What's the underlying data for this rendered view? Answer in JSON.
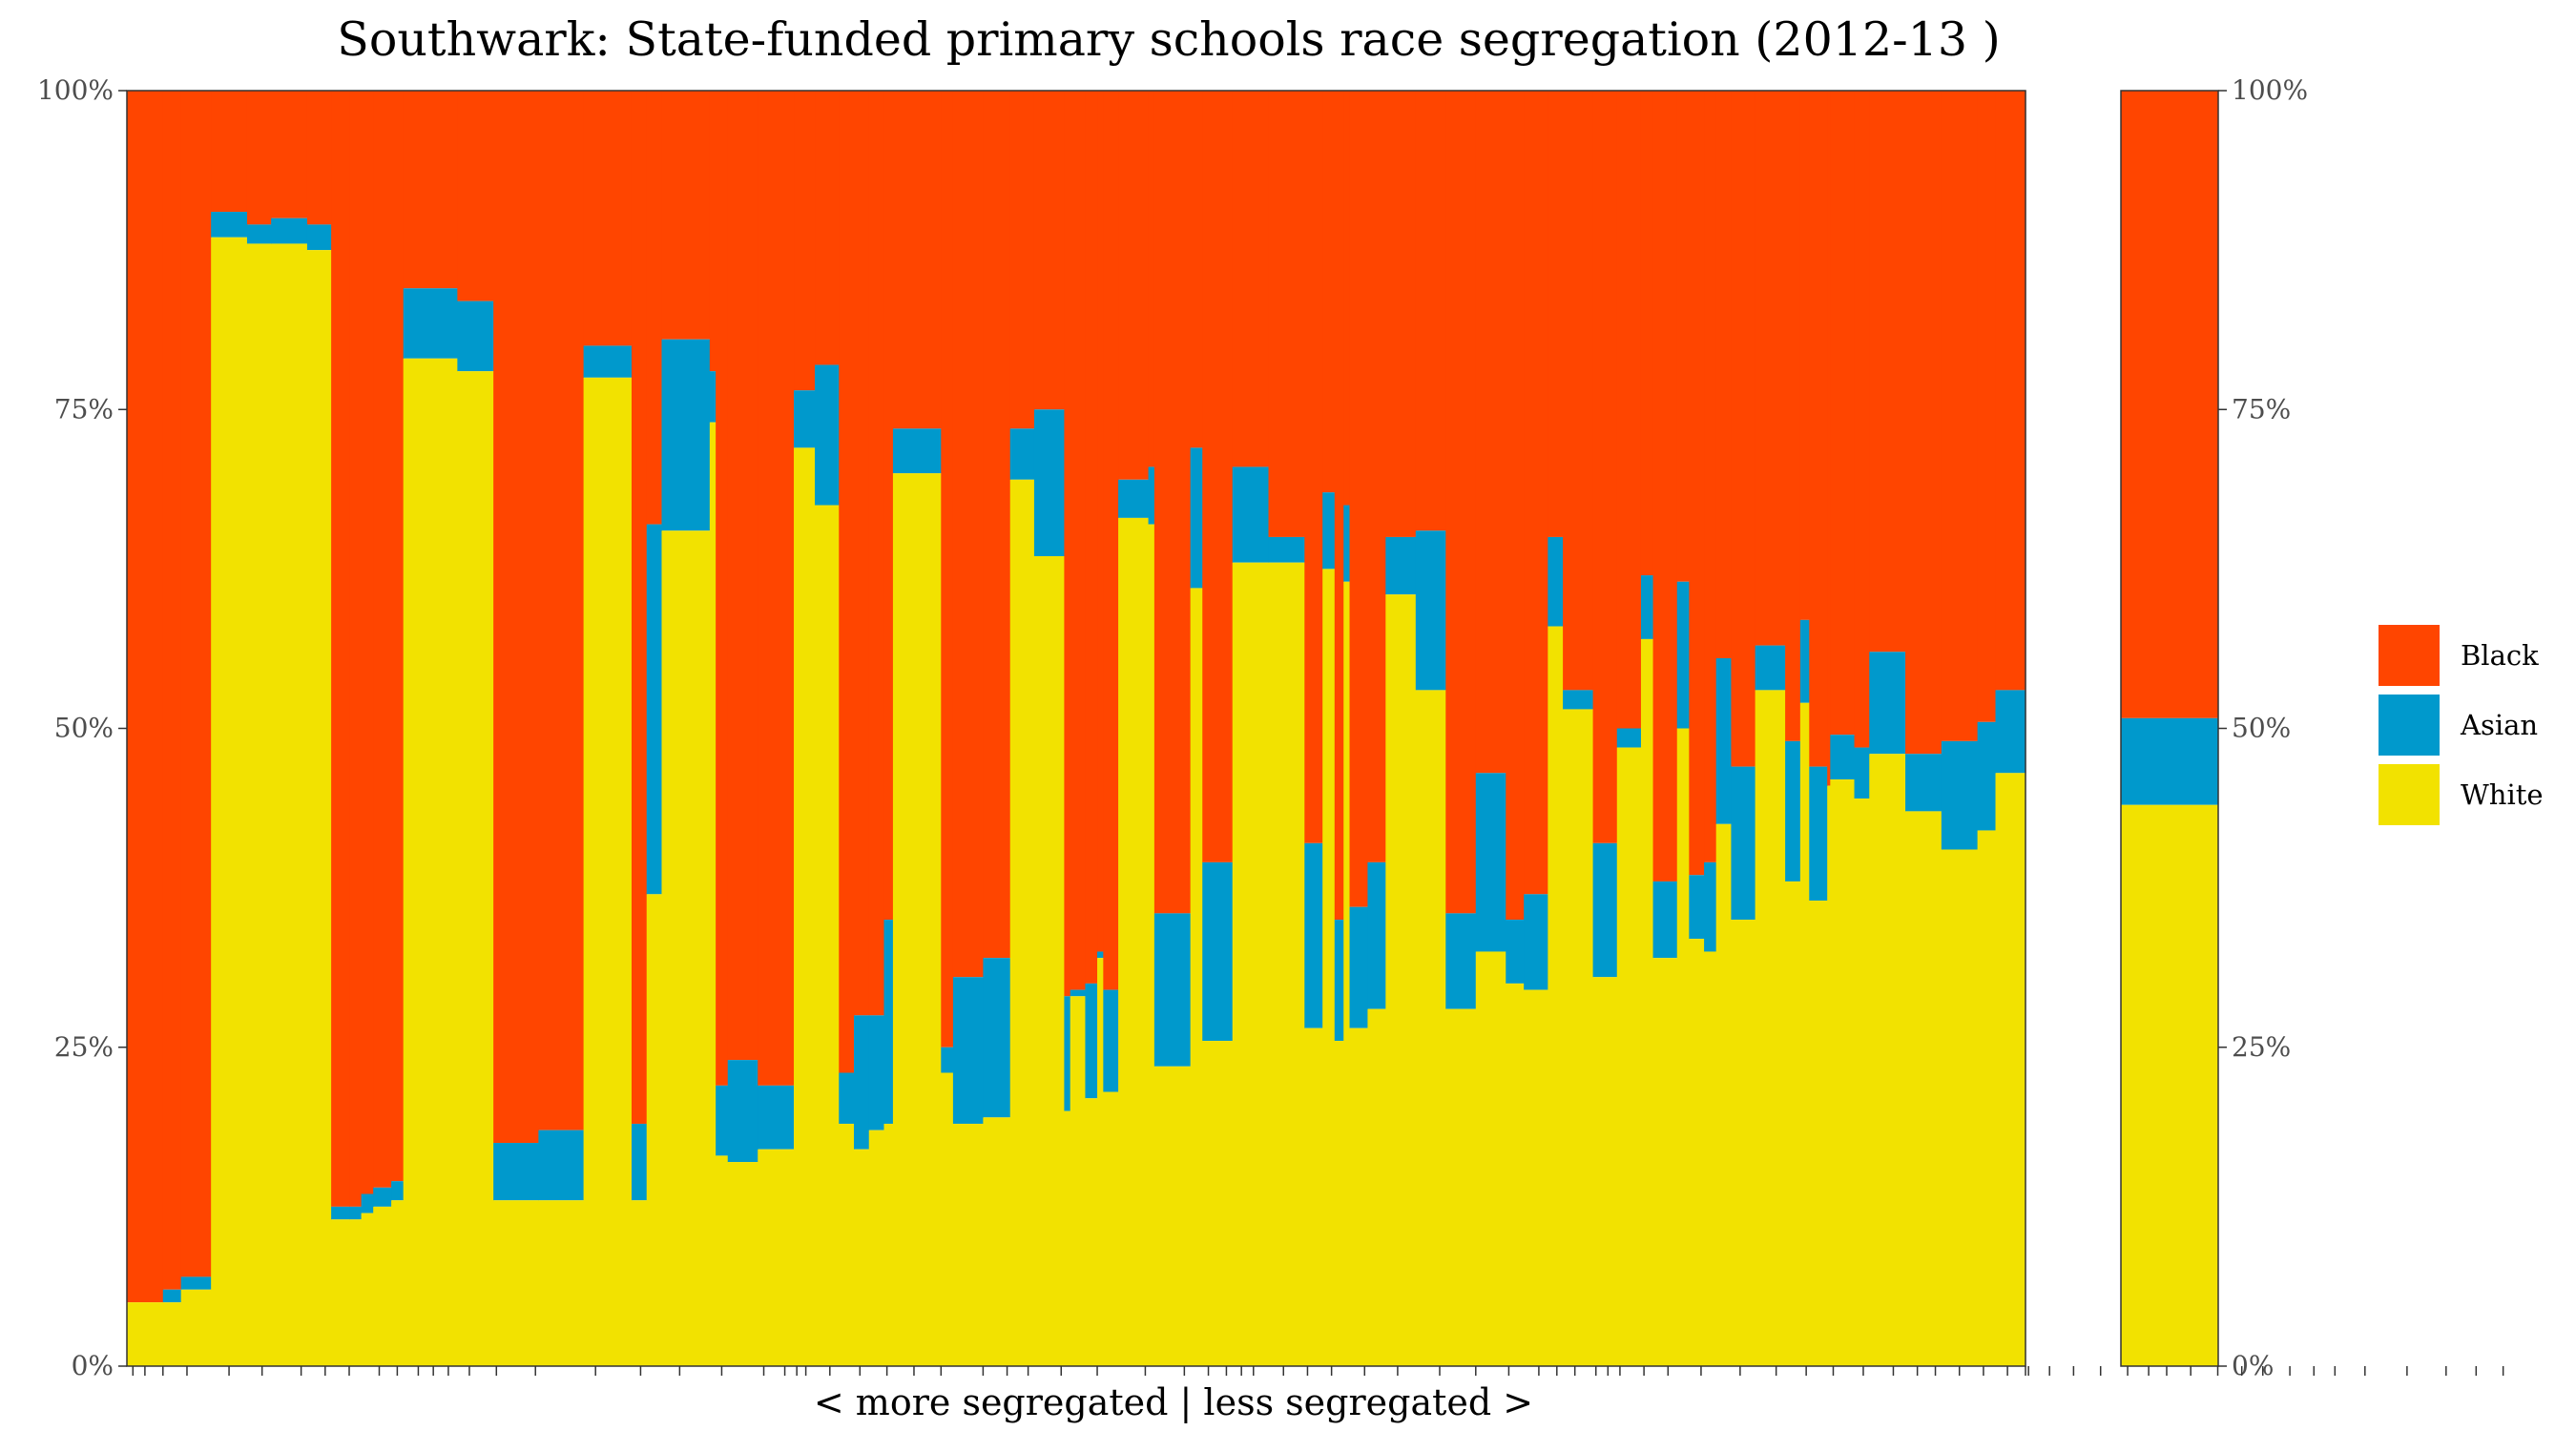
{
  "chart_data": {
    "type": "bar",
    "subtype": "stacked-100-percent-variable-width",
    "title": "Southwark: State-funded primary schools race segregation (2012-13 )",
    "xlabel": "< more segregated | less segregated >",
    "ylabel": "",
    "ylim": [
      0,
      100
    ],
    "y_ticks": [
      "0%",
      "25%",
      "50%",
      "75%",
      "100%"
    ],
    "y_tick_values": [
      0,
      25,
      50,
      75,
      100
    ],
    "secondary_y_axis": true,
    "stack_order_bottom_to_top": [
      "White",
      "Asian",
      "Black"
    ],
    "colors": {
      "White": "#f2e200",
      "Asian": "#0099cc",
      "Black": "#ff4500"
    },
    "legend": {
      "position": "right",
      "entries": [
        "Black",
        "Asian",
        "White"
      ]
    },
    "schools": [
      {
        "w": 1.2,
        "white": 5,
        "asian": 0
      },
      {
        "w": 0.6,
        "white": 5,
        "asian": 1
      },
      {
        "w": 1.0,
        "white": 6,
        "asian": 1
      },
      {
        "w": 1.2,
        "white": 88.5,
        "asian": 2
      },
      {
        "w": 0.8,
        "white": 88,
        "asian": 1.5
      },
      {
        "w": 1.2,
        "white": 88,
        "asian": 2
      },
      {
        "w": 0.8,
        "white": 87.5,
        "asian": 2
      },
      {
        "w": 0.6,
        "white": 11.5,
        "asian": 1
      },
      {
        "w": 0.4,
        "white": 11.5,
        "asian": 1
      },
      {
        "w": 0.4,
        "white": 12,
        "asian": 1.5
      },
      {
        "w": 0.6,
        "white": 12.5,
        "asian": 1.5
      },
      {
        "w": 0.4,
        "white": 13,
        "asian": 1.5
      },
      {
        "w": 1.8,
        "white": 79,
        "asian": 5.5
      },
      {
        "w": 1.2,
        "white": 78,
        "asian": 5.5
      },
      {
        "w": 1.5,
        "white": 13,
        "asian": 4.5
      },
      {
        "w": 1.5,
        "white": 13,
        "asian": 5.5
      },
      {
        "w": 1.6,
        "white": 77.5,
        "asian": 2.5
      },
      {
        "w": 0.5,
        "white": 13,
        "asian": 6
      },
      {
        "w": 0.5,
        "white": 37,
        "asian": 29
      },
      {
        "w": 1.6,
        "white": 65.5,
        "asian": 15
      },
      {
        "w": 0.2,
        "white": 74,
        "asian": 4
      },
      {
        "w": 0.4,
        "white": 16.5,
        "asian": 5.5
      },
      {
        "w": 1.0,
        "white": 16,
        "asian": 8
      },
      {
        "w": 1.2,
        "white": 17,
        "asian": 5
      },
      {
        "w": 0.7,
        "white": 72,
        "asian": 4.5
      },
      {
        "w": 0.8,
        "white": 67.5,
        "asian": 11
      },
      {
        "w": 0.5,
        "white": 19,
        "asian": 4
      },
      {
        "w": 0.5,
        "white": 17,
        "asian": 10.5
      },
      {
        "w": 0.5,
        "white": 18.5,
        "asian": 9
      },
      {
        "w": 0.3,
        "white": 19,
        "asian": 16
      },
      {
        "w": 1.6,
        "white": 70,
        "asian": 3.5
      },
      {
        "w": 0.4,
        "white": 23,
        "asian": 2
      },
      {
        "w": 1.0,
        "white": 19,
        "asian": 11.5
      },
      {
        "w": 0.9,
        "white": 19.5,
        "asian": 12.5
      },
      {
        "w": 0.8,
        "white": 69.5,
        "asian": 4
      },
      {
        "w": 1.0,
        "white": 63.5,
        "asian": 11.5
      },
      {
        "w": 0.2,
        "white": 20,
        "asian": 9
      },
      {
        "w": 0.5,
        "white": 29,
        "asian": 0.5
      },
      {
        "w": 0.4,
        "white": 21,
        "asian": 9
      },
      {
        "w": 0.2,
        "white": 32,
        "asian": 0.5
      },
      {
        "w": 0.5,
        "white": 21.5,
        "asian": 8
      },
      {
        "w": 1.0,
        "white": 66.5,
        "asian": 3
      },
      {
        "w": 0.2,
        "white": 66,
        "asian": 4.5
      },
      {
        "w": 1.2,
        "white": 23.5,
        "asian": 12
      },
      {
        "w": 0.4,
        "white": 61,
        "asian": 11
      },
      {
        "w": 1.0,
        "white": 25.5,
        "asian": 14
      },
      {
        "w": 1.2,
        "white": 63,
        "asian": 7.5
      },
      {
        "w": 1.2,
        "white": 63,
        "asian": 2
      },
      {
        "w": 0.6,
        "white": 26.5,
        "asian": 14.5
      },
      {
        "w": 0.4,
        "white": 62.5,
        "asian": 6
      },
      {
        "w": 0.3,
        "white": 25.5,
        "asian": 9.5
      },
      {
        "w": 0.2,
        "white": 61.5,
        "asian": 6
      },
      {
        "w": 0.6,
        "white": 26.5,
        "asian": 9.5
      },
      {
        "w": 0.6,
        "white": 28,
        "asian": 11.5
      },
      {
        "w": 1.0,
        "white": 60.5,
        "asian": 4.5
      },
      {
        "w": 1.0,
        "white": 53,
        "asian": 12.5
      },
      {
        "w": 1.0,
        "white": 28,
        "asian": 7.5
      },
      {
        "w": 1.0,
        "white": 32.5,
        "asian": 14
      },
      {
        "w": 0.6,
        "white": 30,
        "asian": 5
      },
      {
        "w": 0.8,
        "white": 29.5,
        "asian": 7.5
      },
      {
        "w": 0.5,
        "white": 58,
        "asian": 7
      },
      {
        "w": 1.0,
        "white": 51.5,
        "asian": 1.5
      },
      {
        "w": 0.8,
        "white": 30.5,
        "asian": 10.5
      },
      {
        "w": 0.8,
        "white": 48.5,
        "asian": 1.5
      },
      {
        "w": 0.4,
        "white": 57,
        "asian": 5
      },
      {
        "w": 0.8,
        "white": 32,
        "asian": 6
      },
      {
        "w": 0.4,
        "white": 50,
        "asian": 11.5
      },
      {
        "w": 0.5,
        "white": 33.5,
        "asian": 5
      },
      {
        "w": 0.4,
        "white": 32.5,
        "asian": 7
      },
      {
        "w": 0.5,
        "white": 42.5,
        "asian": 13
      },
      {
        "w": 0.8,
        "white": 35,
        "asian": 12
      },
      {
        "w": 1.0,
        "white": 53,
        "asian": 3.5
      },
      {
        "w": 0.5,
        "white": 38,
        "asian": 11
      },
      {
        "w": 0.3,
        "white": 52,
        "asian": 6.5
      },
      {
        "w": 0.6,
        "white": 36.5,
        "asian": 10.5
      },
      {
        "w": 0.1,
        "white": 45.5,
        "asian": 0
      },
      {
        "w": 0.8,
        "white": 46,
        "asian": 3.5
      },
      {
        "w": 0.5,
        "white": 44.5,
        "asian": 4
      },
      {
        "w": 1.2,
        "white": 48,
        "asian": 8
      },
      {
        "w": 1.2,
        "white": 43.5,
        "asian": 4.5
      },
      {
        "w": 1.2,
        "white": 40.5,
        "asian": 8.5
      },
      {
        "w": 0.6,
        "white": 42,
        "asian": 8.5
      },
      {
        "w": 1.0,
        "white": 46.5,
        "asian": 6.5
      }
    ],
    "x_ticks": [
      0.2,
      0.6,
      1.2,
      2.0,
      3.4,
      4.5,
      5.8,
      6.6,
      7.4,
      8.4,
      9.0,
      9.7,
      10.2,
      10.7,
      11.4,
      12.3,
      13.6,
      15.6,
      17.1,
      18.4,
      19.8,
      21.2,
      21.9,
      22.3,
      22.6,
      23.4,
      24.4,
      25.3,
      26.2,
      27.1,
      28.5,
      29.3,
      30.0,
      31.1,
      32.3,
      33.9,
      35.2,
      36.0,
      36.6,
      37.1,
      37.5,
      38.5,
      39.3,
      40.1,
      41.2,
      42.3,
      43.7,
      44.9,
      46.0,
      47.0,
      47.6,
      48.2,
      48.9,
      49.3,
      49.7,
      50.5,
      51.3,
      52.4,
      53.7,
      54.9,
      55.9,
      56.8,
      57.8,
      58.8,
      59.6,
      60.2,
      61.0,
      61.8,
      62.6,
      63.3,
      64.0,
      64.8,
      65.7,
      66.6,
      67.3,
      67.9,
      68.7,
      69.6,
      70.4,
      71.1,
      72.0,
      72.8,
      73.5,
      74.5,
      75.9,
      77.2,
      78.2,
      79.1
    ]
  },
  "overall": {
    "white": 44,
    "asian": 6.8,
    "black": 49.2
  }
}
